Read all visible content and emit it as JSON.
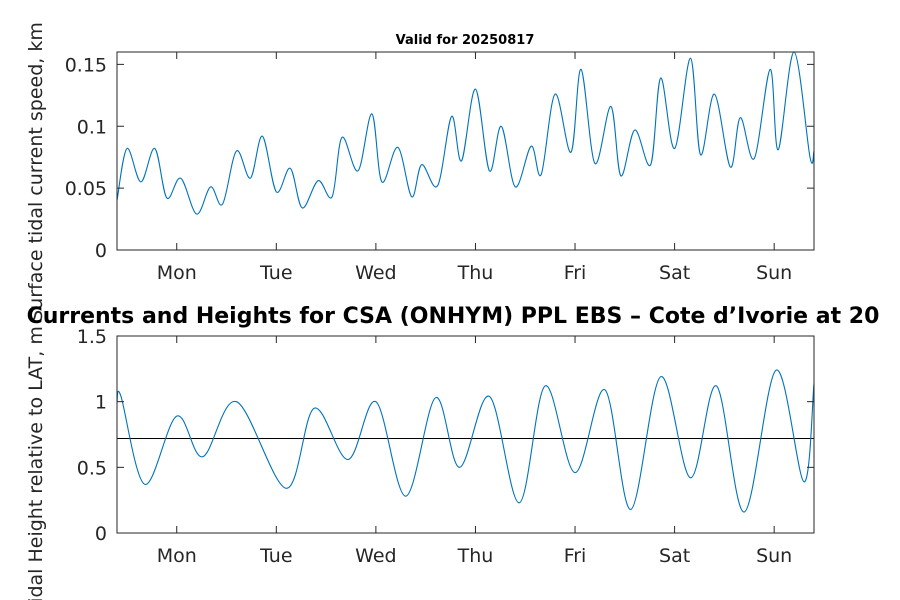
{
  "figure": {
    "subtitle": "Valid for 20250817",
    "title": "Currents and Heights for CSA (ONHYM) PPL EBS  – Cote d’Ivorie at 20"
  },
  "chart_data": [
    {
      "type": "line",
      "title": "Valid for 20250817",
      "xlabel": "",
      "ylabel": "Surface tidal current speed, km",
      "categories": [
        "Mon",
        "Tue",
        "Wed",
        "Thu",
        "Fri",
        "Sat",
        "Sun"
      ],
      "xlim": [
        -0.6,
        6.4
      ],
      "ylim": [
        0,
        0.16
      ],
      "yticks": [
        "0",
        "0.05",
        "0.1",
        "0.15"
      ],
      "ytick_values": [
        0,
        0.05,
        0.1,
        0.15
      ],
      "grid": false,
      "color": "#0072BD",
      "series": [
        {
          "x": [
            -0.6,
            -0.5,
            -0.36,
            -0.22,
            -0.1,
            0.04,
            0.2,
            0.34,
            0.46,
            0.6,
            0.74,
            0.86,
            1.0,
            1.14,
            1.26,
            1.42,
            1.56,
            1.66,
            1.82,
            1.96,
            2.06,
            2.22,
            2.36,
            2.46,
            2.62,
            2.76,
            2.86,
            3.0,
            3.14,
            3.26,
            3.4,
            3.56,
            3.66,
            3.8,
            3.96,
            4.06,
            4.2,
            4.36,
            4.46,
            4.6,
            4.76,
            4.86,
            5.0,
            5.16,
            5.26,
            5.4,
            5.56,
            5.66,
            5.8,
            5.96,
            6.04,
            6.2,
            6.36,
            6.4
          ],
          "y": [
            0.04,
            0.082,
            0.055,
            0.082,
            0.042,
            0.058,
            0.029,
            0.051,
            0.037,
            0.08,
            0.058,
            0.092,
            0.047,
            0.066,
            0.034,
            0.056,
            0.043,
            0.091,
            0.064,
            0.11,
            0.055,
            0.083,
            0.043,
            0.069,
            0.052,
            0.108,
            0.072,
            0.13,
            0.064,
            0.1,
            0.051,
            0.084,
            0.061,
            0.126,
            0.079,
            0.146,
            0.07,
            0.116,
            0.06,
            0.097,
            0.069,
            0.139,
            0.082,
            0.155,
            0.077,
            0.126,
            0.067,
            0.107,
            0.074,
            0.146,
            0.081,
            0.16,
            0.075,
            0.08
          ]
        }
      ]
    },
    {
      "type": "line",
      "title": "Currents and Heights for CSA (ONHYM) PPL EBS  – Cote d’Ivorie at 20",
      "xlabel": "",
      "ylabel": "Tidal Height relative to LAT, m",
      "categories": [
        "Mon",
        "Tue",
        "Wed",
        "Thu",
        "Fri",
        "Sat",
        "Sun"
      ],
      "xlim": [
        -0.6,
        6.4
      ],
      "ylim": [
        0,
        1.5
      ],
      "yticks": [
        "0",
        "0.5",
        "1",
        "1.5"
      ],
      "ytick_values": [
        0,
        0.5,
        1,
        1.5
      ],
      "reference_line": 0.72,
      "grid": false,
      "color": "#0072BD",
      "series": [
        {
          "x": [
            -0.6,
            -0.56,
            -0.32,
            0.0,
            0.26,
            0.6,
            1.1,
            1.38,
            1.72,
            2.0,
            2.3,
            2.6,
            2.84,
            3.14,
            3.44,
            3.7,
            4.0,
            4.3,
            4.56,
            4.86,
            5.16,
            5.42,
            5.7,
            6.02,
            6.3,
            6.4
          ],
          "y": [
            1.0,
            1.04,
            0.37,
            0.89,
            0.58,
            1.0,
            0.34,
            0.95,
            0.56,
            1.0,
            0.28,
            1.03,
            0.5,
            1.04,
            0.23,
            1.12,
            0.46,
            1.09,
            0.18,
            1.19,
            0.42,
            1.12,
            0.16,
            1.24,
            0.39,
            1.14
          ]
        }
      ]
    }
  ]
}
